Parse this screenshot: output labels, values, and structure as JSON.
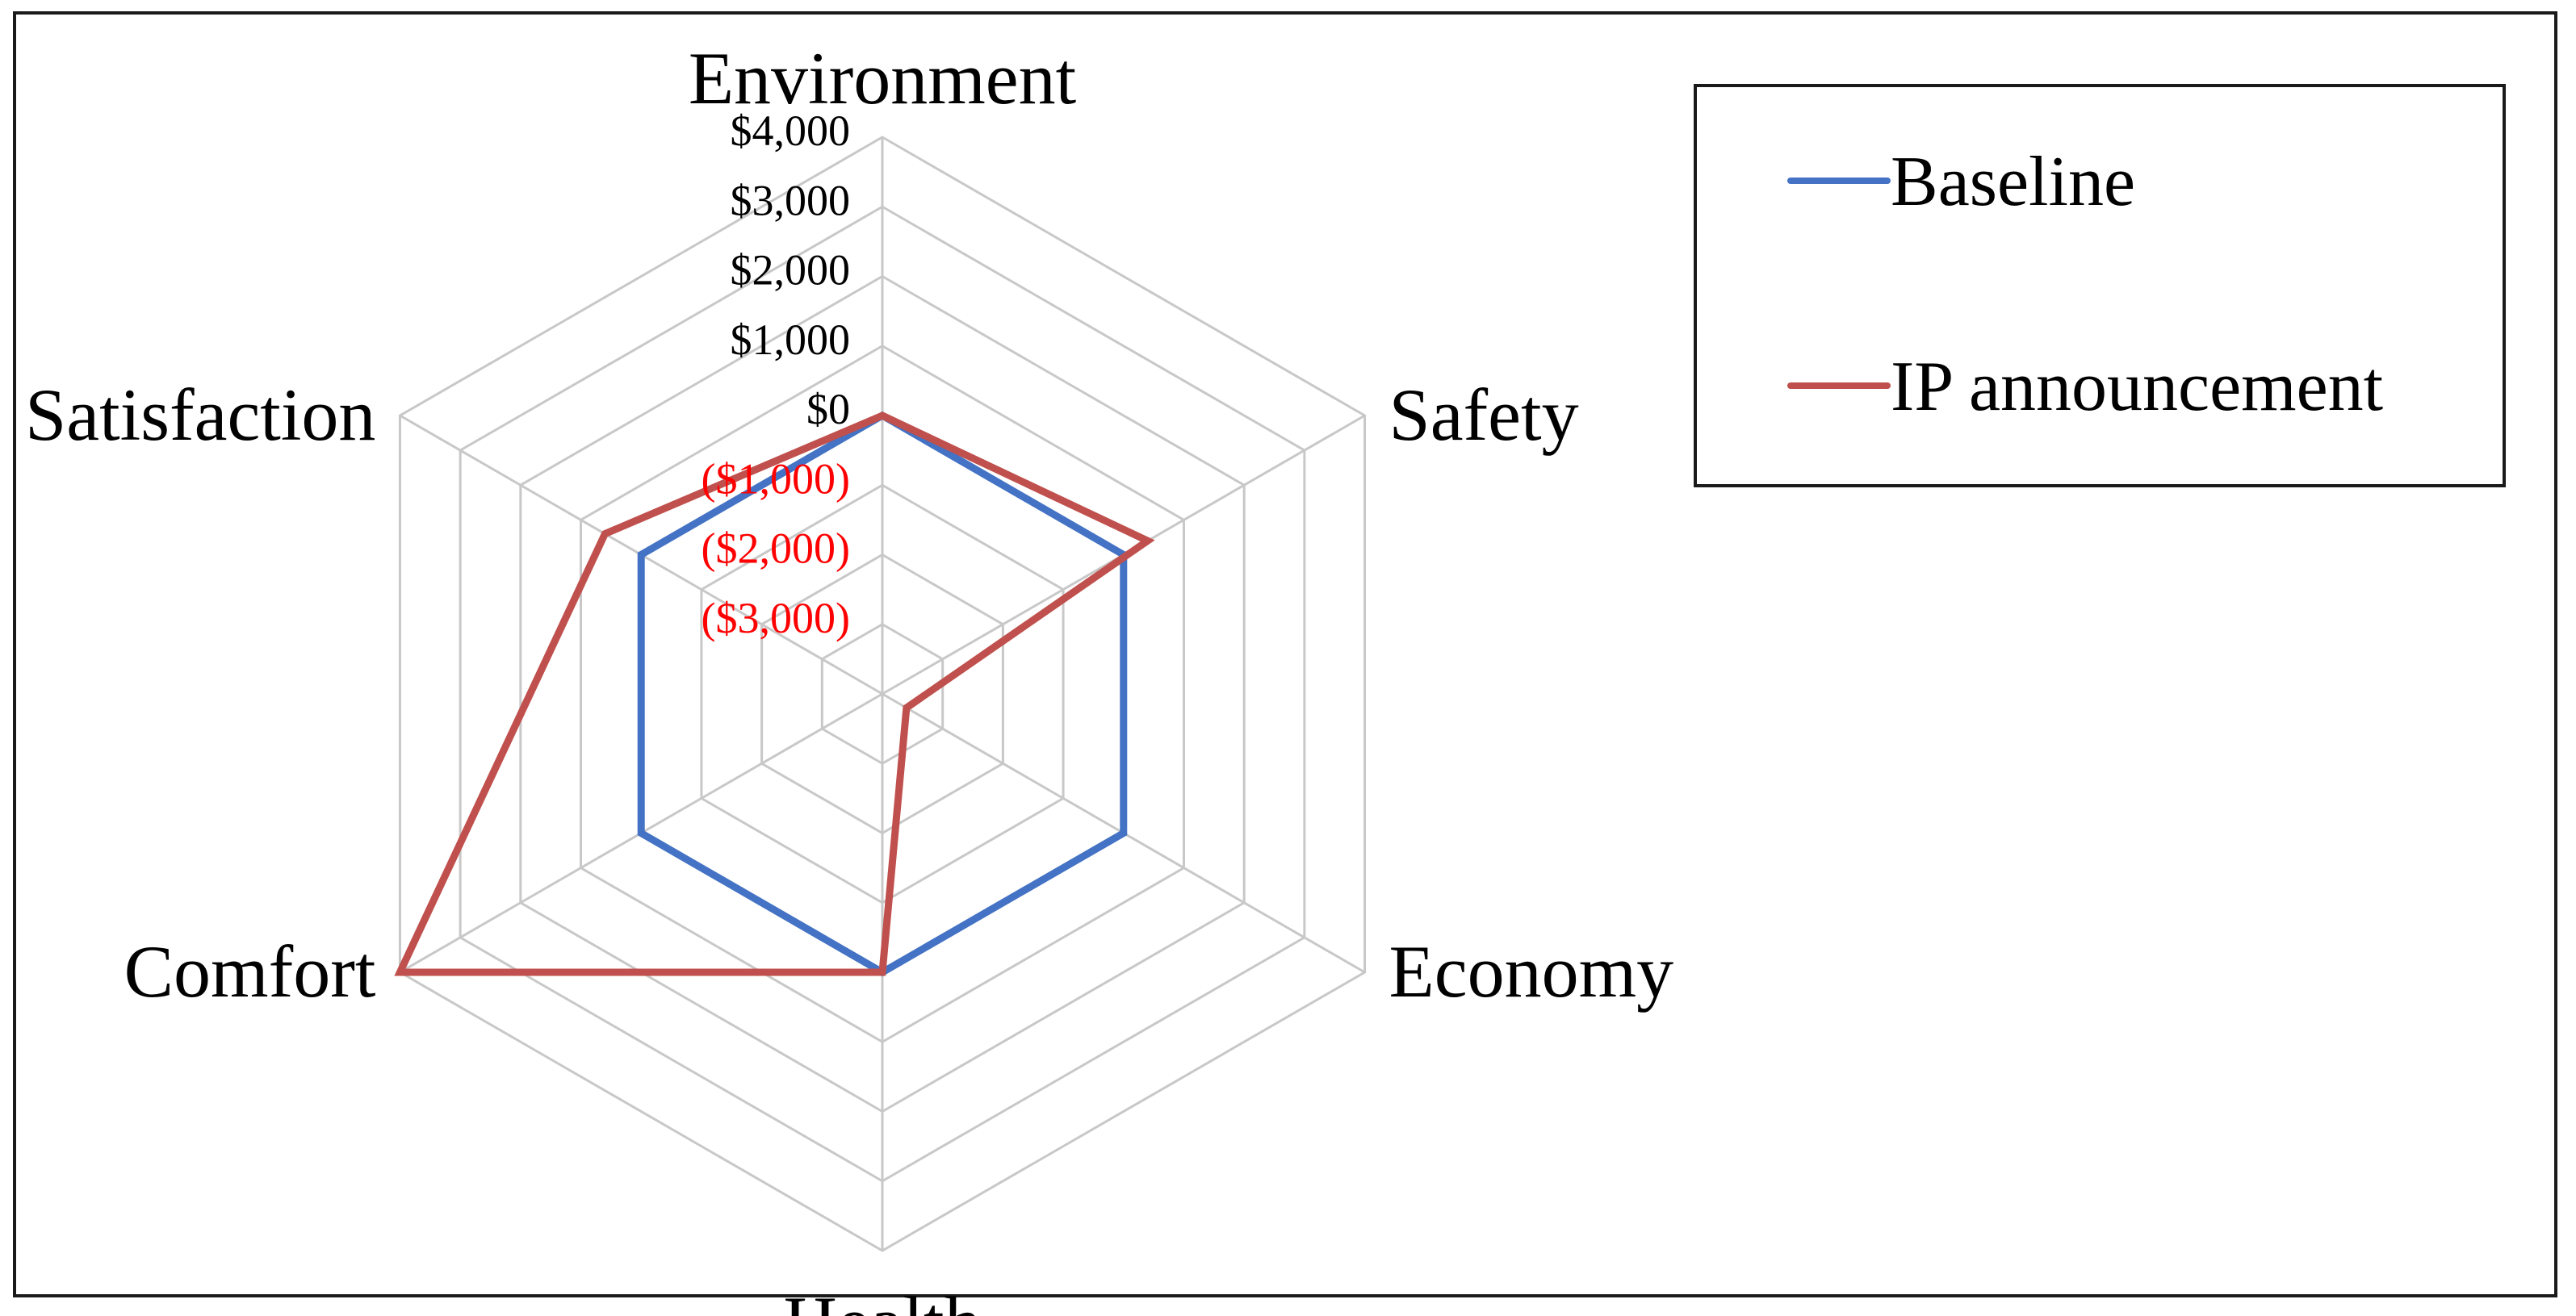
{
  "chart_data": {
    "type": "radar",
    "categories": [
      "Environment",
      "Safety",
      "Economy",
      "Health",
      "Comfort",
      "Satisfaction"
    ],
    "rlim": [
      -4000,
      4000
    ],
    "ticks": [
      -3000,
      -2000,
      -1000,
      0,
      1000,
      2000,
      3000,
      4000
    ],
    "tick_labels": [
      "($3,000)",
      "($2,000)",
      "($1,000)",
      "$0",
      "$1,000",
      "$2,000",
      "$3,000",
      "$4,000"
    ],
    "negative_tick_color": "#ff0000",
    "positive_tick_color": "#000000",
    "grid": true,
    "legend_position": "top-right",
    "series": [
      {
        "name": "Baseline",
        "color": "#4472c4",
        "values": [
          0,
          0,
          0,
          0,
          0,
          0
        ]
      },
      {
        "name": "IP announcement",
        "color": "#c0504d",
        "values": [
          0,
          400,
          -3600,
          0,
          4000,
          600
        ]
      }
    ]
  }
}
